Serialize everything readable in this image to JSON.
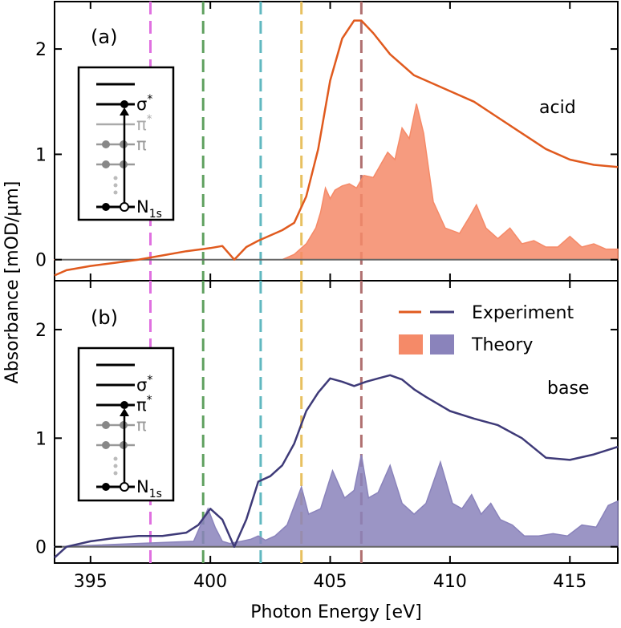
{
  "chart_data": [
    {
      "type": "line",
      "panel_label": "(a)",
      "condition_label": "acid",
      "xlabel": "Photon Energy [eV]",
      "ylabel": "Absorbance [mOD/µm]",
      "xlim": [
        393.5,
        417
      ],
      "ylim": [
        -0.2,
        2.45
      ],
      "x_ticks": [
        395,
        400,
        405,
        410,
        415
      ],
      "y_ticks": [
        0,
        1,
        2
      ],
      "vlines_eV": [
        397.5,
        399.7,
        402.1,
        403.8,
        406.3
      ],
      "vline_colors": [
        "#e070e0",
        "#5fa05f",
        "#60b8c0",
        "#e8c060",
        "#b07070"
      ],
      "series": [
        {
          "name": "Experiment",
          "kind": "line",
          "color": "#e05a1e",
          "x": [
            393.5,
            394,
            395,
            396,
            397,
            398,
            399,
            400,
            400.5,
            401,
            401.5,
            402,
            403,
            403.5,
            404,
            404.5,
            405,
            405.5,
            406,
            406.3,
            406.8,
            407.5,
            408.5,
            410,
            411,
            412,
            413,
            414,
            415,
            416,
            417
          ],
          "y": [
            -0.15,
            -0.1,
            -0.06,
            -0.03,
            0.0,
            0.04,
            0.08,
            0.11,
            0.13,
            0.0,
            0.12,
            0.18,
            0.28,
            0.35,
            0.6,
            1.05,
            1.7,
            2.1,
            2.27,
            2.27,
            2.15,
            1.95,
            1.75,
            1.6,
            1.5,
            1.35,
            1.2,
            1.05,
            0.95,
            0.9,
            0.88
          ]
        },
        {
          "name": "Theory",
          "kind": "area",
          "color": "#f58a68",
          "x": [
            393.5,
            403,
            403.5,
            404,
            404.4,
            404.6,
            404.8,
            405,
            405.2,
            405.5,
            405.8,
            406.1,
            406.4,
            406.8,
            407.1,
            407.4,
            407.7,
            408,
            408.3,
            408.6,
            408.9,
            409.3,
            409.8,
            410.4,
            410.8,
            411.1,
            411.5,
            412,
            412.5,
            413,
            413.5,
            414,
            414.5,
            415,
            415.5,
            416,
            416.5,
            417
          ],
          "y": [
            0.0,
            0.0,
            0.05,
            0.15,
            0.3,
            0.45,
            0.68,
            0.58,
            0.66,
            0.7,
            0.72,
            0.68,
            0.8,
            0.78,
            0.9,
            1.02,
            0.95,
            1.25,
            1.15,
            1.48,
            1.2,
            0.55,
            0.3,
            0.25,
            0.4,
            0.52,
            0.3,
            0.2,
            0.3,
            0.15,
            0.18,
            0.12,
            0.12,
            0.22,
            0.12,
            0.15,
            0.1,
            0.1
          ]
        }
      ],
      "inset": {
        "levels": [
          "σ*",
          "π*",
          "π",
          "N1s"
        ],
        "transition": "N1s → σ*"
      }
    },
    {
      "type": "line",
      "panel_label": "(b)",
      "condition_label": "base",
      "xlabel": "Photon Energy [eV]",
      "ylabel": "Absorbance [mOD/µm]",
      "xlim": [
        393.5,
        417
      ],
      "ylim": [
        -0.15,
        2.45
      ],
      "x_ticks": [
        395,
        400,
        405,
        410,
        415
      ],
      "y_ticks": [
        0,
        1,
        2
      ],
      "vlines_eV": [
        397.5,
        399.7,
        402.1,
        403.8,
        406.3
      ],
      "series": [
        {
          "name": "Experiment",
          "kind": "line",
          "color": "#3e3a78",
          "x": [
            393.5,
            394,
            395,
            396,
            397,
            398,
            399,
            399.5,
            400,
            400.5,
            401,
            401.5,
            402,
            402.5,
            403,
            403.5,
            404,
            404.5,
            405,
            405.5,
            406,
            406.5,
            407,
            407.5,
            408,
            408.5,
            409,
            410,
            411,
            412,
            413,
            414,
            415,
            416,
            417
          ],
          "y": [
            -0.1,
            0.0,
            0.05,
            0.08,
            0.1,
            0.1,
            0.13,
            0.2,
            0.35,
            0.25,
            0.0,
            0.25,
            0.6,
            0.65,
            0.75,
            0.95,
            1.25,
            1.42,
            1.55,
            1.52,
            1.48,
            1.52,
            1.55,
            1.58,
            1.54,
            1.45,
            1.38,
            1.25,
            1.18,
            1.12,
            1.0,
            0.82,
            0.8,
            0.85,
            0.92
          ]
        },
        {
          "name": "Theory",
          "kind": "area",
          "color": "#8a83bb",
          "x": [
            393.5,
            399.3,
            399.6,
            399.9,
            400.2,
            400.5,
            400.8,
            401.3,
            401.7,
            402.0,
            402.3,
            402.7,
            403.2,
            403.8,
            404.1,
            404.6,
            405.1,
            405.6,
            406.0,
            406.3,
            406.6,
            407.0,
            407.5,
            408.0,
            408.5,
            409.0,
            409.6,
            410.1,
            410.5,
            410.9,
            411.3,
            411.7,
            412.1,
            412.6,
            413.1,
            413.7,
            414.3,
            414.9,
            415.5,
            416.1,
            416.6,
            417
          ],
          "y": [
            0.0,
            0.05,
            0.2,
            0.35,
            0.18,
            0.05,
            0.03,
            0.05,
            0.07,
            0.1,
            0.06,
            0.1,
            0.2,
            0.55,
            0.3,
            0.35,
            0.7,
            0.45,
            0.52,
            0.85,
            0.45,
            0.5,
            0.75,
            0.4,
            0.3,
            0.4,
            0.78,
            0.4,
            0.35,
            0.48,
            0.3,
            0.4,
            0.25,
            0.2,
            0.1,
            0.1,
            0.12,
            0.1,
            0.2,
            0.18,
            0.38,
            0.42
          ]
        }
      ],
      "inset": {
        "levels": [
          "σ*",
          "π*",
          "π",
          "N1s"
        ],
        "transition": "N1s → π*"
      }
    }
  ],
  "legend": {
    "experiment_label": "Experiment",
    "theory_label": "Theory",
    "experiment_colors": [
      "#e05a1e",
      "#3e3a78"
    ],
    "theory_colors": [
      "#f58a68",
      "#8a83bb"
    ]
  },
  "axes_text": {
    "xlabel": "Photon Energy [eV]",
    "ylabel": "Absorbance [mOD/µm]"
  },
  "inset_text": {
    "sigma_star": "σ",
    "pi_star": "π",
    "pi": "π",
    "star": "*",
    "n1s_base": "N",
    "n1s_sub": "1s"
  }
}
